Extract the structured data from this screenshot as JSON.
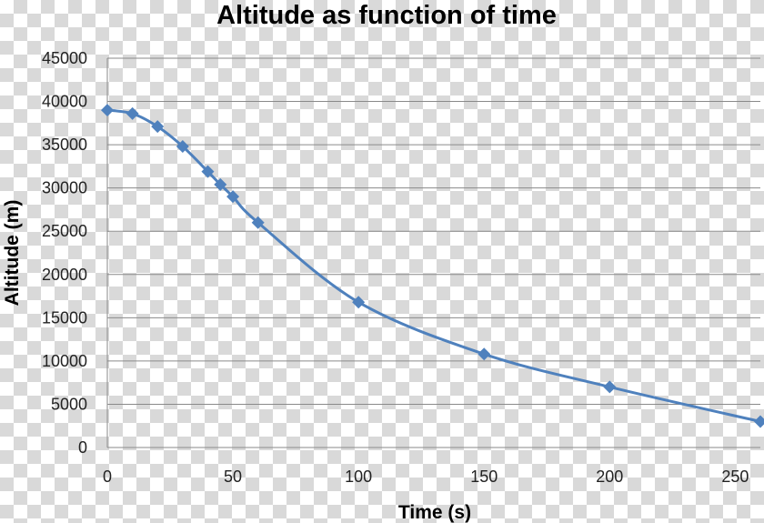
{
  "chart_data": {
    "type": "line",
    "title": "Altitude as function of time",
    "xlabel": "Time (s)",
    "ylabel": "Altitude (m)",
    "xlim": [
      0,
      260
    ],
    "ylim": [
      0,
      45000
    ],
    "x_ticks": [
      0,
      50,
      100,
      150,
      200,
      250
    ],
    "y_ticks": [
      0,
      5000,
      10000,
      15000,
      20000,
      25000,
      30000,
      35000,
      40000,
      45000
    ],
    "grid": "horizontal",
    "legend": "none",
    "line_color": "#4f81bd",
    "marker": "diamond",
    "smooth": true,
    "series": [
      {
        "x": [
          0,
          10,
          20,
          30,
          40,
          45,
          50,
          60,
          100,
          150,
          200,
          260
        ],
        "y": [
          39000,
          38600,
          37100,
          34800,
          31900,
          30400,
          29000,
          26000,
          16800,
          10800,
          7000,
          3000
        ]
      }
    ]
  }
}
